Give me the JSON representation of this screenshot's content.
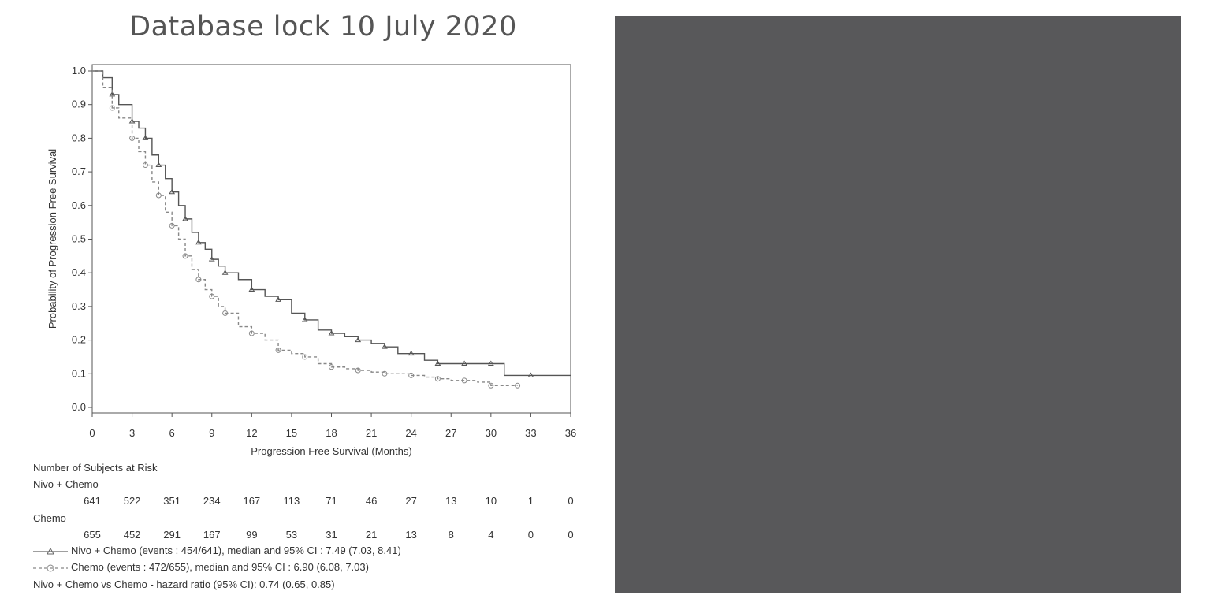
{
  "title": "Database lock 10 July 2020",
  "chart_data": {
    "type": "line",
    "subtype": "kaplan-meier",
    "xlabel": "Progression Free Survival (Months)",
    "ylabel": "Probability of Progression Free Survival",
    "xlim": [
      0,
      36
    ],
    "ylim": [
      0,
      1.0
    ],
    "xticks": [
      "0",
      "3",
      "6",
      "9",
      "12",
      "15",
      "18",
      "21",
      "24",
      "27",
      "30",
      "33",
      "36"
    ],
    "yticks": [
      "0.0",
      "0.1",
      "0.2",
      "0.3",
      "0.4",
      "0.5",
      "0.6",
      "0.7",
      "0.8",
      "0.9",
      "1.0"
    ],
    "grid": false,
    "series": [
      {
        "name": "Nivo + Chemo",
        "style": "solid",
        "color": "#555555",
        "x": [
          0,
          0.8,
          1.5,
          2,
          3,
          3.5,
          4,
          4.5,
          5,
          5.5,
          6,
          6.5,
          7,
          7.5,
          8,
          8.5,
          9,
          9.5,
          10,
          11,
          12,
          13,
          14,
          15,
          16,
          17,
          18,
          19,
          20,
          21,
          22,
          23,
          24,
          25,
          26,
          27,
          28,
          29,
          30,
          31,
          33,
          36
        ],
        "y": [
          1.0,
          0.98,
          0.93,
          0.9,
          0.85,
          0.83,
          0.8,
          0.75,
          0.72,
          0.68,
          0.64,
          0.6,
          0.56,
          0.52,
          0.49,
          0.47,
          0.44,
          0.42,
          0.4,
          0.38,
          0.35,
          0.33,
          0.32,
          0.28,
          0.26,
          0.23,
          0.22,
          0.21,
          0.2,
          0.19,
          0.18,
          0.16,
          0.16,
          0.14,
          0.13,
          0.13,
          0.13,
          0.13,
          0.13,
          0.095,
          0.095,
          0.095
        ]
      },
      {
        "name": "Chemo",
        "style": "dashed",
        "color": "#888888",
        "x": [
          0,
          0.8,
          1.5,
          2,
          3,
          3.5,
          4,
          4.5,
          5,
          5.5,
          6,
          6.5,
          7,
          7.5,
          8,
          8.5,
          9,
          9.5,
          10,
          11,
          12,
          13,
          14,
          15,
          16,
          17,
          18,
          19,
          20,
          21,
          22,
          23,
          24,
          25,
          26,
          27,
          28,
          29,
          30,
          31,
          32
        ],
        "y": [
          1.0,
          0.95,
          0.89,
          0.86,
          0.8,
          0.76,
          0.72,
          0.67,
          0.63,
          0.58,
          0.54,
          0.5,
          0.45,
          0.41,
          0.38,
          0.35,
          0.33,
          0.3,
          0.28,
          0.24,
          0.22,
          0.2,
          0.17,
          0.16,
          0.15,
          0.13,
          0.12,
          0.115,
          0.11,
          0.105,
          0.1,
          0.1,
          0.095,
          0.09,
          0.085,
          0.08,
          0.08,
          0.075,
          0.065,
          0.065,
          0.065
        ]
      }
    ]
  },
  "risk_table": {
    "header": "Number of Subjects at Risk",
    "groups": [
      {
        "label": "Nivo + Chemo",
        "values": [
          "641",
          "522",
          "351",
          "234",
          "167",
          "113",
          "71",
          "46",
          "27",
          "13",
          "10",
          "1",
          "0"
        ]
      },
      {
        "label": "Chemo",
        "values": [
          "655",
          "452",
          "291",
          "167",
          "99",
          "53",
          "31",
          "21",
          "13",
          "8",
          "4",
          "0",
          "0"
        ]
      }
    ]
  },
  "legend": {
    "nivo": "Nivo + Chemo (events : 454/641), median and 95% CI : 7.49 (7.03, 8.41)",
    "chemo": "Chemo (events : 472/655), median and 95% CI : 6.90 (6.08, 7.03)",
    "hazard": "Nivo + Chemo vs Chemo - hazard ratio (95% CI): 0.74 (0.65, 0.85)"
  },
  "colors": {
    "panel": "#58585a",
    "axis": "#555555"
  }
}
